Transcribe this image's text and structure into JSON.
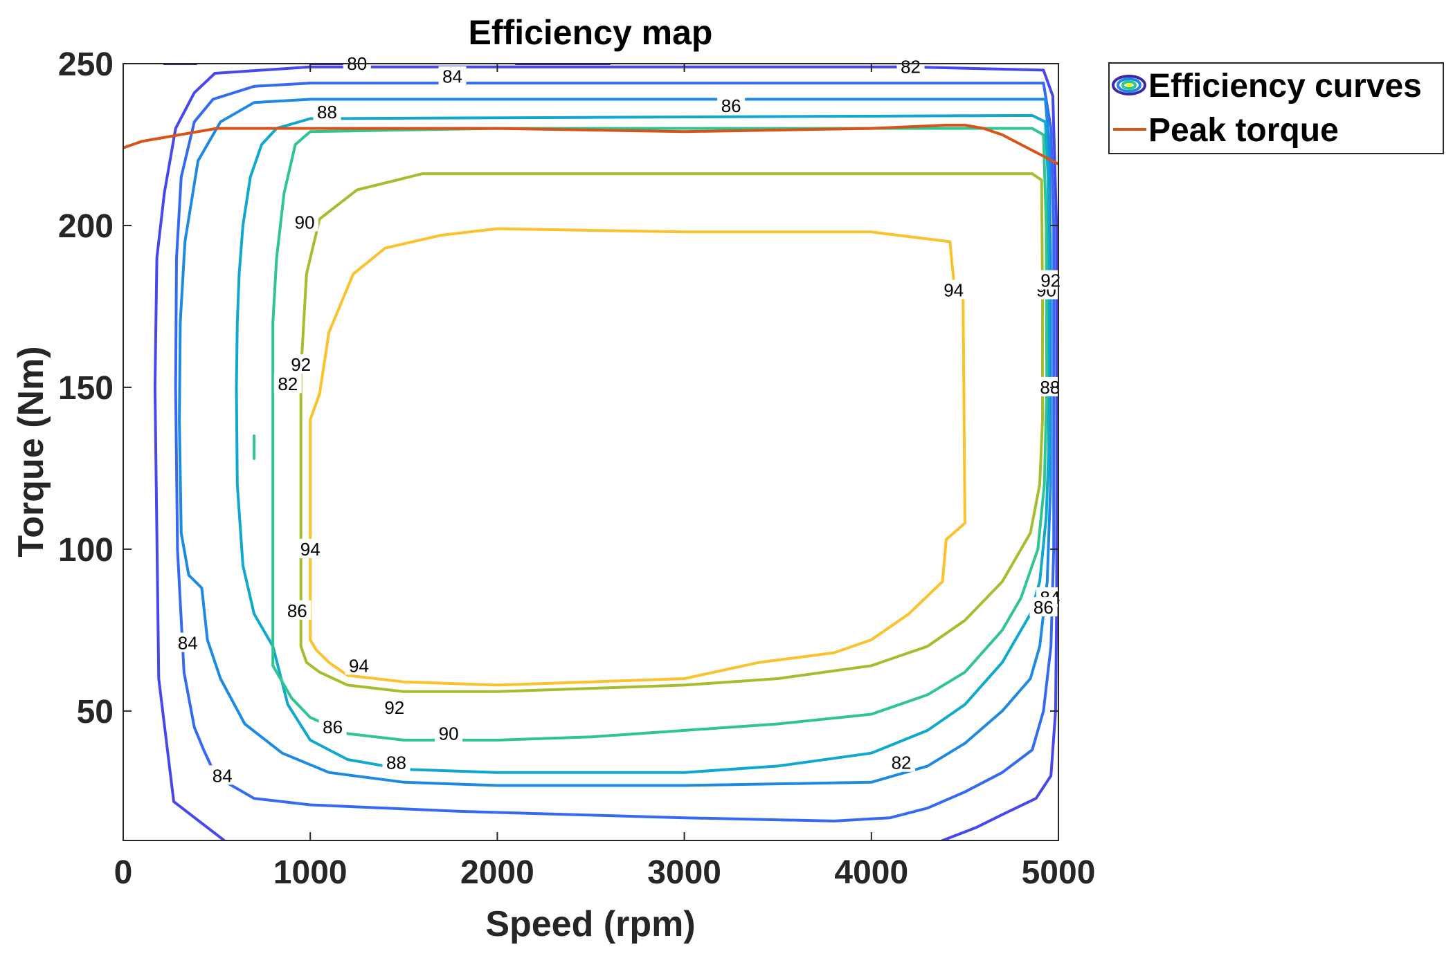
{
  "chart_data": {
    "type": "contour",
    "title": "Efficiency map",
    "xlabel": "Speed (rpm)",
    "ylabel": "Torque (Nm)",
    "xlim": [
      0,
      5000
    ],
    "ylim": [
      10,
      250
    ],
    "xticks": [
      "0",
      "1000",
      "2000",
      "3000",
      "4000",
      "5000"
    ],
    "yticks": [
      "50",
      "100",
      "150",
      "200",
      "250"
    ],
    "legend": {
      "position": "outside-top-right",
      "entries": [
        {
          "name": "Efficiency curves",
          "marker": "contour-ellipse"
        },
        {
          "name": "Peak torque",
          "color": "#D95319"
        }
      ]
    },
    "levels": [
      {
        "level": "80",
        "color": "#3E26A8",
        "paths": [
          [
            [
              220,
              250
            ],
            [
              390,
              250
            ]
          ],
          [
            [
              1000,
              250
            ],
            [
              1180,
              250
            ]
          ],
          [
            [
              2100,
              250
            ],
            [
              2600,
              250
            ]
          ]
        ],
        "labels": [
          [
            1250,
            250
          ]
        ]
      },
      {
        "level": "82",
        "color": "#4747EB",
        "paths": [
          [
            [
              540,
              10
            ],
            [
              270,
              22
            ],
            [
              190,
              60
            ],
            [
              170,
              150
            ],
            [
              180,
              190
            ],
            [
              220,
              210
            ],
            [
              280,
              230
            ],
            [
              380,
              241
            ],
            [
              490,
              247
            ],
            [
              1000,
              249
            ],
            [
              4200,
              249
            ],
            [
              4920,
              248
            ],
            [
              4970,
              240
            ],
            [
              4990,
              200
            ],
            [
              4992,
              120
            ],
            [
              4990,
              80
            ],
            [
              4985,
              50
            ],
            [
              4960,
              30
            ],
            [
              4880,
              23
            ],
            [
              4700,
              18
            ],
            [
              4560,
              14
            ],
            [
              4380,
              10
            ]
          ]
        ],
        "labels": [
          [
            880,
            151
          ],
          [
            4210,
            249
          ],
          [
            4160,
            34
          ]
        ]
      },
      {
        "level": "84",
        "color": "#3469F1",
        "paths": [
          [
            [
              430,
              38
            ],
            [
              380,
              45
            ],
            [
              325,
              62
            ],
            [
              290,
              100
            ],
            [
              280,
              150
            ],
            [
              285,
              190
            ],
            [
              310,
              215
            ],
            [
              380,
              232
            ],
            [
              480,
              239
            ],
            [
              700,
              243
            ],
            [
              1000,
              244
            ],
            [
              4200,
              244
            ],
            [
              4920,
              244
            ],
            [
              4960,
              230
            ],
            [
              4975,
              200
            ],
            [
              4975,
              100
            ],
            [
              4960,
              70
            ],
            [
              4920,
              50
            ],
            [
              4860,
              38
            ],
            [
              4700,
              31
            ],
            [
              4500,
              25
            ],
            [
              4300,
              20
            ],
            [
              4100,
              17
            ],
            [
              3800,
              16
            ],
            [
              3000,
              17
            ],
            [
              1800,
              19
            ],
            [
              1000,
              21
            ],
            [
              700,
              23
            ],
            [
              550,
              28
            ],
            [
              470,
              33
            ],
            [
              430,
              38
            ]
          ]
        ],
        "labels": [
          [
            530,
            30
          ],
          [
            4955,
            85
          ],
          [
            345,
            71
          ],
          [
            1760,
            246
          ]
        ]
      },
      {
        "level": "86",
        "color": "#1C8AE2",
        "paths": [
          [
            [
              420,
              88
            ],
            [
              350,
              92
            ],
            [
              310,
              105
            ],
            [
              300,
              140
            ],
            [
              305,
              170
            ],
            [
              330,
              195
            ],
            [
              400,
              220
            ],
            [
              520,
              232
            ],
            [
              700,
              238
            ],
            [
              1000,
              239
            ],
            [
              4930,
              239
            ],
            [
              4950,
              225
            ],
            [
              4958,
              190
            ],
            [
              4958,
              120
            ],
            [
              4940,
              90
            ],
            [
              4900,
              70
            ],
            [
              4850,
              60
            ],
            [
              4700,
              50
            ],
            [
              4500,
              40
            ],
            [
              4300,
              33
            ],
            [
              4000,
              28
            ],
            [
              3000,
              27
            ],
            [
              2000,
              27
            ],
            [
              1500,
              28
            ],
            [
              1100,
              31
            ],
            [
              850,
              37
            ],
            [
              650,
              46
            ],
            [
              520,
              60
            ],
            [
              450,
              72
            ],
            [
              420,
              88
            ]
          ]
        ],
        "labels": [
          [
            930,
            81
          ],
          [
            1120,
            45
          ],
          [
            4920,
            82
          ],
          [
            3250,
            237
          ]
        ]
      },
      {
        "level": "88",
        "color": "#0FA8CE",
        "paths": [
          [
            [
              800,
              70
            ],
            [
              700,
              80
            ],
            [
              640,
              95
            ],
            [
              610,
              120
            ],
            [
              605,
              150
            ],
            [
              610,
              170
            ],
            [
              620,
              185
            ],
            [
              640,
              200
            ],
            [
              680,
              215
            ],
            [
              740,
              225
            ],
            [
              820,
              230
            ],
            [
              1000,
              233
            ],
            [
              4860,
              234
            ],
            [
              4930,
              232
            ],
            [
              4945,
              215
            ],
            [
              4948,
              180
            ],
            [
              4948,
              130
            ],
            [
              4935,
              110
            ],
            [
              4900,
              90
            ],
            [
              4850,
              80
            ],
            [
              4700,
              65
            ],
            [
              4500,
              52
            ],
            [
              4300,
              44
            ],
            [
              4000,
              37
            ],
            [
              3500,
              33
            ],
            [
              3000,
              31
            ],
            [
              2000,
              31
            ],
            [
              1500,
              32
            ],
            [
              1200,
              35
            ],
            [
              1000,
              41
            ],
            [
              880,
              52
            ],
            [
              800,
              70
            ]
          ]
        ],
        "labels": [
          [
            1090,
            235
          ],
          [
            1460,
            34
          ],
          [
            4955,
            150
          ]
        ]
      },
      {
        "level": "90",
        "color": "#2FC58E",
        "paths": [
          [
            [
              800,
              64
            ],
            [
              800,
              170
            ],
            [
              820,
              190
            ],
            [
              860,
              210
            ],
            [
              920,
              225
            ],
            [
              1000,
              229
            ],
            [
              2000,
              230
            ],
            [
              3000,
              230
            ],
            [
              4000,
              230
            ],
            [
              4860,
              230
            ],
            [
              4920,
              228
            ],
            [
              4935,
              200
            ],
            [
              4938,
              150
            ],
            [
              4925,
              120
            ],
            [
              4890,
              100
            ],
            [
              4800,
              85
            ],
            [
              4700,
              75
            ],
            [
              4500,
              62
            ],
            [
              4300,
              55
            ],
            [
              4000,
              49
            ],
            [
              3500,
              46
            ],
            [
              3000,
              44
            ],
            [
              2500,
              42
            ],
            [
              2000,
              41
            ],
            [
              1500,
              41
            ],
            [
              1200,
              43
            ],
            [
              1000,
              48
            ],
            [
              900,
              54
            ],
            [
              800,
              64
            ]
          ],
          [
            [
              700,
              135
            ],
            [
              700,
              128
            ]
          ]
        ],
        "labels": [
          [
            970,
            201
          ],
          [
            1740,
            43
          ],
          [
            4935,
            180
          ]
        ]
      },
      {
        "level": "92",
        "color": "#A5BE30",
        "paths": [
          [
            [
              950,
              70
            ],
            [
              950,
              155
            ],
            [
              980,
              185
            ],
            [
              1050,
              202
            ],
            [
              1250,
              211
            ],
            [
              1600,
              216
            ],
            [
              2000,
              216
            ],
            [
              3000,
              216
            ],
            [
              4000,
              216
            ],
            [
              4860,
              216
            ],
            [
              4910,
              214
            ],
            [
              4915,
              180
            ],
            [
              4915,
              140
            ],
            [
              4900,
              120
            ],
            [
              4850,
              105
            ],
            [
              4700,
              90
            ],
            [
              4500,
              78
            ],
            [
              4300,
              70
            ],
            [
              4000,
              64
            ],
            [
              3500,
              60
            ],
            [
              3000,
              58
            ],
            [
              2500,
              57
            ],
            [
              2000,
              56
            ],
            [
              1500,
              56
            ],
            [
              1200,
              58
            ],
            [
              1050,
              62
            ],
            [
              980,
              65
            ],
            [
              950,
              70
            ]
          ]
        ],
        "labels": [
          [
            950,
            157
          ],
          [
            1450,
            51
          ],
          [
            4958,
            183
          ]
        ]
      },
      {
        "level": "94",
        "color": "#FAC22C",
        "paths": [
          [
            [
              1000,
              72
            ],
            [
              1000,
              140
            ],
            [
              1050,
              148
            ],
            [
              1100,
              167
            ],
            [
              1230,
              185
            ],
            [
              1400,
              193
            ],
            [
              1700,
              197
            ],
            [
              2000,
              199
            ],
            [
              3000,
              198
            ],
            [
              4000,
              198
            ],
            [
              4420,
              195
            ],
            [
              4440,
              183
            ],
            [
              4490,
              180
            ],
            [
              4500,
              108
            ],
            [
              4400,
              103
            ],
            [
              4380,
              90
            ],
            [
              4200,
              80
            ],
            [
              4000,
              72
            ],
            [
              3800,
              68
            ],
            [
              3400,
              65
            ],
            [
              3000,
              60
            ],
            [
              2500,
              59
            ],
            [
              2000,
              58
            ],
            [
              1500,
              59
            ],
            [
              1200,
              61
            ],
            [
              1100,
              65
            ],
            [
              1030,
              69
            ],
            [
              1000,
              72
            ]
          ]
        ],
        "labels": [
          [
            1000,
            100
          ],
          [
            1260,
            64
          ],
          [
            4440,
            180
          ]
        ]
      }
    ],
    "peak_torque": {
      "name": "Peak torque",
      "color": "#D95319",
      "x": [
        0,
        100,
        200,
        300,
        400,
        500,
        1000,
        2000,
        3000,
        4000,
        4400,
        4500,
        4600,
        4700,
        4800,
        4900,
        5000
      ],
      "y": [
        224,
        226,
        227,
        228,
        229,
        230,
        230,
        230,
        229,
        230,
        231,
        231,
        230,
        228,
        225,
        222,
        219
      ]
    }
  }
}
